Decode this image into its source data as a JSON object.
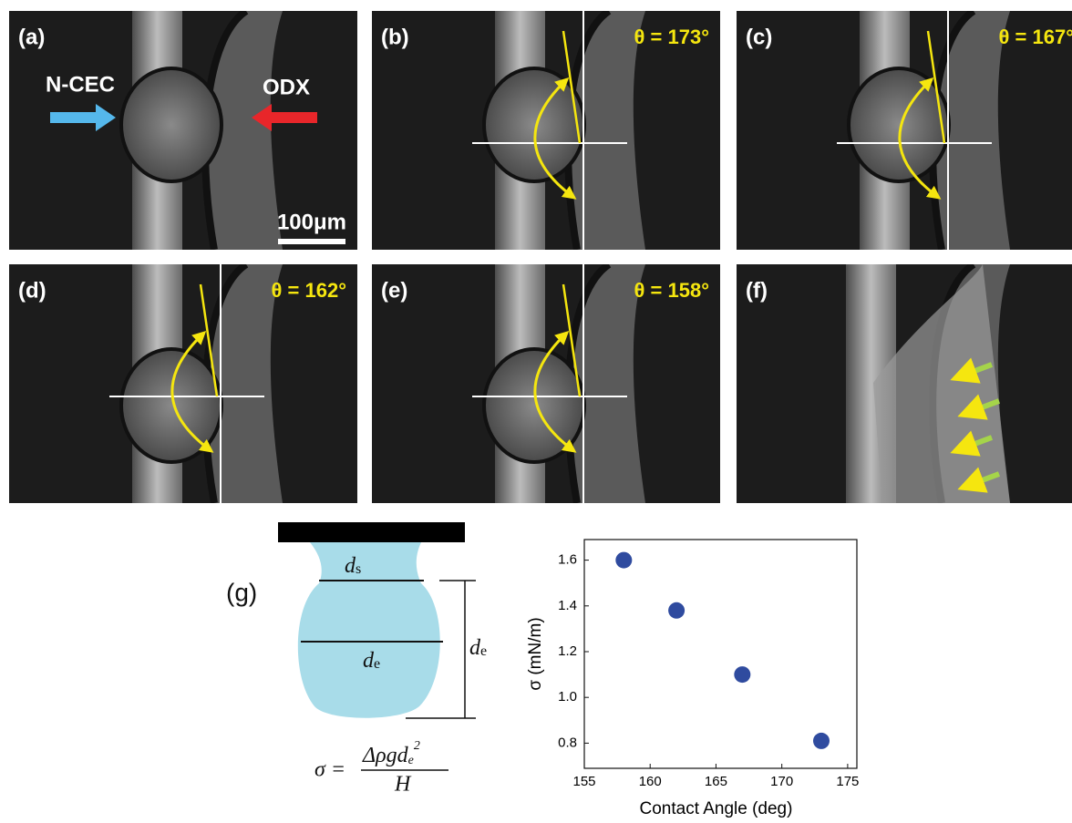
{
  "panels": [
    {
      "label": "(a)",
      "left_arrow": "N-CEC",
      "right_arrow": "ODX",
      "scale_bar": "100μm"
    },
    {
      "label": "(b)",
      "angle": "θ = 173°"
    },
    {
      "label": "(c)",
      "angle": "θ = 167°"
    },
    {
      "label": "(d)",
      "angle": "θ = 162°"
    },
    {
      "label": "(e)",
      "angle": "θ = 158°"
    },
    {
      "label": "(f)"
    }
  ],
  "diagram": {
    "label": "(g)",
    "neck": {
      "main": "d",
      "sub": "s"
    },
    "equator": {
      "main": "d",
      "sub": "e"
    },
    "height": {
      "main": "d",
      "sub": "e"
    },
    "formula": {
      "lhs": "σ =",
      "numerator": "Δρgd",
      "numerator_sub": "e",
      "numerator_sup": "2",
      "denominator": "H"
    }
  },
  "chart_data": {
    "type": "scatter",
    "x_label": "Contact Angle (deg)",
    "y_label": "σ (mN/m)",
    "x": [
      158,
      162,
      167,
      173
    ],
    "values": [
      1.6,
      1.38,
      1.1,
      0.81
    ],
    "color": "#2f4b9f",
    "xlim": [
      155,
      175.7
    ],
    "ylim": [
      0.69,
      1.69
    ],
    "xticks": [
      155,
      160,
      165,
      170,
      175
    ],
    "yticks": [
      0.8,
      {
        "value": 1,
        "label": "1.0"
      },
      1.2,
      1.4,
      1.6
    ]
  }
}
